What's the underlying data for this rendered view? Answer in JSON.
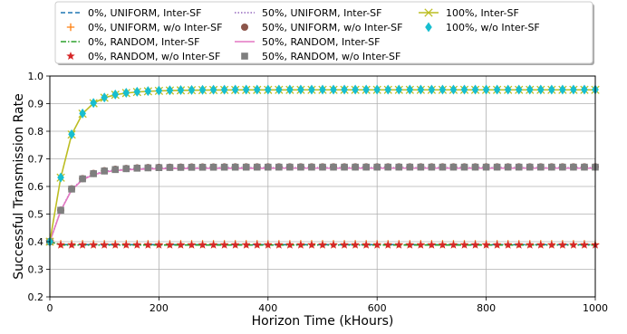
{
  "chart_data": {
    "type": "line",
    "xlabel": "Horizon Time (kHours)",
    "ylabel": "Successful Transmission Rate",
    "xlim": [
      0,
      1000
    ],
    "ylim": [
      0.2,
      1.0
    ],
    "xticks": [
      "0",
      "200",
      "400",
      "600",
      "800",
      "1000"
    ],
    "yticks": [
      "0.2",
      "0.3",
      "0.4",
      "0.5",
      "0.6",
      "0.7",
      "0.8",
      "0.9",
      "1.0"
    ],
    "grid": true,
    "legend_position": "top-center, outside plot",
    "series": [
      {
        "name": "0%, UNIFORM, Inter-SF",
        "color": "#1f77b4",
        "style": "dashed",
        "marker": "none",
        "level": 0.389,
        "start": 0.4
      },
      {
        "name": "0%, UNIFORM, w/o Inter-SF",
        "color": "#ff7f0e",
        "style": "none",
        "marker": "plus",
        "level": 0.392,
        "start": 0.4
      },
      {
        "name": "0%, RANDOM, Inter-SF",
        "color": "#2ca02c",
        "style": "dashdot",
        "marker": "none",
        "level": 0.388,
        "start": 0.4
      },
      {
        "name": "0%, RANDOM, w/o Inter-SF",
        "color": "#d62728",
        "style": "none",
        "marker": "star",
        "level": 0.388,
        "start": 0.4
      },
      {
        "name": "50%, UNIFORM, Inter-SF",
        "color": "#9467bd",
        "style": "dotted",
        "marker": "none",
        "level": 0.668,
        "start": 0.4
      },
      {
        "name": "50%, UNIFORM, w/o Inter-SF",
        "color": "#8c564b",
        "style": "none",
        "marker": "circle",
        "level": 0.671,
        "start": 0.4
      },
      {
        "name": "50%, RANDOM, Inter-SF",
        "color": "#e377c2",
        "style": "solid",
        "marker": "none",
        "level": 0.666,
        "start": 0.4
      },
      {
        "name": "50%, RANDOM, w/o Inter-SF",
        "color": "#7f7f7f",
        "style": "none",
        "marker": "square",
        "level": 0.67,
        "start": 0.4
      },
      {
        "name": "100%, Inter-SF",
        "color": "#bcbd22",
        "style": "solid",
        "marker": "x",
        "level": 0.95,
        "start": 0.4
      },
      {
        "name": "100%, w/o Inter-SF",
        "color": "#17becf",
        "style": "none",
        "marker": "diamond",
        "level": 0.951,
        "start": 0.4
      }
    ],
    "x_points": [
      0,
      20,
      40,
      60,
      80,
      100,
      120,
      140,
      160,
      180,
      200,
      220,
      240,
      260,
      280,
      300,
      320,
      340,
      360,
      380,
      400,
      420,
      440,
      460,
      480,
      500,
      520,
      540,
      560,
      580,
      600,
      620,
      640,
      660,
      680,
      700,
      720,
      740,
      760,
      780,
      800,
      820,
      840,
      860,
      880,
      900,
      920,
      940,
      960,
      980,
      1000
    ]
  }
}
